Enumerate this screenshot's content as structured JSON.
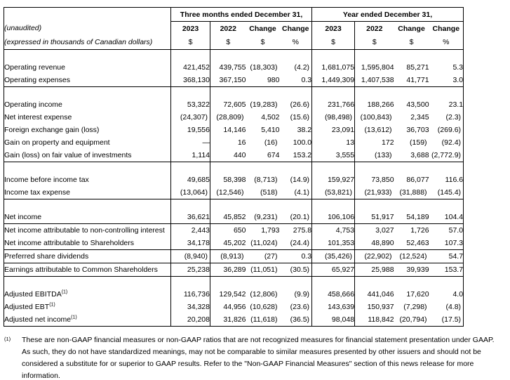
{
  "document": {
    "table": {
      "group_headers": [
        "Three months ended December 31,",
        "Year ended December 31,"
      ],
      "notes": [
        "(unaudited)",
        "(expressed in thousands of Canadian dollars)"
      ],
      "column_headers": [
        "2023",
        "2022",
        "Change",
        "Change"
      ],
      "column_units": [
        "$",
        "$",
        "$",
        "%"
      ],
      "sections": [
        {
          "spacer": true,
          "rows": [
            {
              "label": "Operating revenue",
              "values": [
                "421,452",
                "439,755",
                "(18,303)",
                "(4.2)",
                "1,681,075",
                "1,595,804",
                "85,271",
                "5.3"
              ]
            },
            {
              "label": "Operating expenses",
              "values": [
                "368,130",
                "367,150",
                "980",
                "0.3",
                "1,449,309",
                "1,407,538",
                "41,771",
                "3.0"
              ]
            }
          ]
        },
        {
          "spacer": true,
          "rows": [
            {
              "label": "Operating income",
              "values": [
                "53,322",
                "72,605",
                "(19,283)",
                "(26.6)",
                "231,766",
                "188,266",
                "43,500",
                "23.1"
              ]
            },
            {
              "label": "Net interest expense",
              "values": [
                "(24,307)",
                "(28,809)",
                "4,502",
                "(15.6)",
                "(98,498)",
                "(100,843)",
                "2,345",
                "(2.3)"
              ]
            },
            {
              "label": "Foreign exchange gain (loss)",
              "values": [
                "19,556",
                "14,146",
                "5,410",
                "38.2",
                "23,091",
                "(13,612)",
                "36,703",
                "(269.6)"
              ]
            },
            {
              "label": "Gain on property and equipment",
              "values": [
                "—",
                "16",
                "(16)",
                "100.0",
                "13",
                "172",
                "(159)",
                "(92.4)"
              ]
            },
            {
              "label": "Gain (loss) on fair value of investments",
              "values": [
                "1,114",
                "440",
                "674",
                "153.2",
                "3,555",
                "(133)",
                "3,688",
                "(2,772.9)"
              ]
            }
          ]
        },
        {
          "spacer": true,
          "rows": [
            {
              "label": "Income before income tax",
              "values": [
                "49,685",
                "58,398",
                "(8,713)",
                "(14.9)",
                "159,927",
                "73,850",
                "86,077",
                "116.6"
              ]
            },
            {
              "label": "Income tax expense",
              "values": [
                "(13,064)",
                "(12,546)",
                "(518)",
                "(4.1)",
                "(53,821)",
                "(21,933)",
                "(31,888)",
                "(145.4)"
              ]
            }
          ]
        },
        {
          "spacer": true,
          "rows": [
            {
              "label": "Net income",
              "values": [
                "36,621",
                "45,852",
                "(9,231)",
                "(20.1)",
                "106,106",
                "51,917",
                "54,189",
                "104.4"
              ]
            }
          ]
        },
        {
          "spacer": false,
          "rows": [
            {
              "label": "Net income attributable to non-controlling interest",
              "values": [
                "2,443",
                "650",
                "1,793",
                "275.8",
                "4,753",
                "3,027",
                "1,726",
                "57.0"
              ]
            },
            {
              "label": "Net income attributable to Shareholders",
              "values": [
                "34,178",
                "45,202",
                "(11,024)",
                "(24.4)",
                "101,353",
                "48,890",
                "52,463",
                "107.3"
              ]
            }
          ]
        },
        {
          "spacer": false,
          "rows": [
            {
              "label": "Preferred share dividends",
              "values": [
                "(8,940)",
                "(8,913)",
                "(27)",
                "0.3",
                "(35,426)",
                "(22,902)",
                "(12,524)",
                "54.7"
              ]
            }
          ]
        },
        {
          "spacer": false,
          "rows": [
            {
              "label": "Earnings attributable to Common Shareholders",
              "values": [
                "25,238",
                "36,289",
                "(11,051)",
                "(30.5)",
                "65,927",
                "25,988",
                "39,939",
                "153.7"
              ]
            }
          ]
        },
        {
          "spacer": true,
          "rows": [
            {
              "label": "Adjusted EBITDA",
              "sup": "(1)",
              "values": [
                "116,736",
                "129,542",
                "(12,806)",
                "(9.9)",
                "458,666",
                "441,046",
                "17,620",
                "4.0"
              ]
            },
            {
              "label": "Adjusted EBT",
              "sup": "(1)",
              "values": [
                "34,328",
                "44,956",
                "(10,628)",
                "(23.6)",
                "143,639",
                "150,937",
                "(7,298)",
                "(4.8)"
              ]
            },
            {
              "label": "Adjusted net income",
              "sup": "(1)",
              "values": [
                "20,208",
                "31,826",
                "(11,618)",
                "(36.5)",
                "98,048",
                "118,842",
                "(20,794)",
                "(17.5)"
              ]
            }
          ]
        }
      ]
    },
    "footnote": {
      "marker": "(1)",
      "text": "These are non-GAAP financial measures or non-GAAP ratios that are not recognized measures for financial statement presentation under GAAP. As such, they do not have standardized meanings, may not be comparable to similar measures presented by other issuers and should not be considered a substitute for or superior to GAAP results. Refer to the \"Non-GAAP Financial Measures\" section of this news release for more information."
    }
  }
}
